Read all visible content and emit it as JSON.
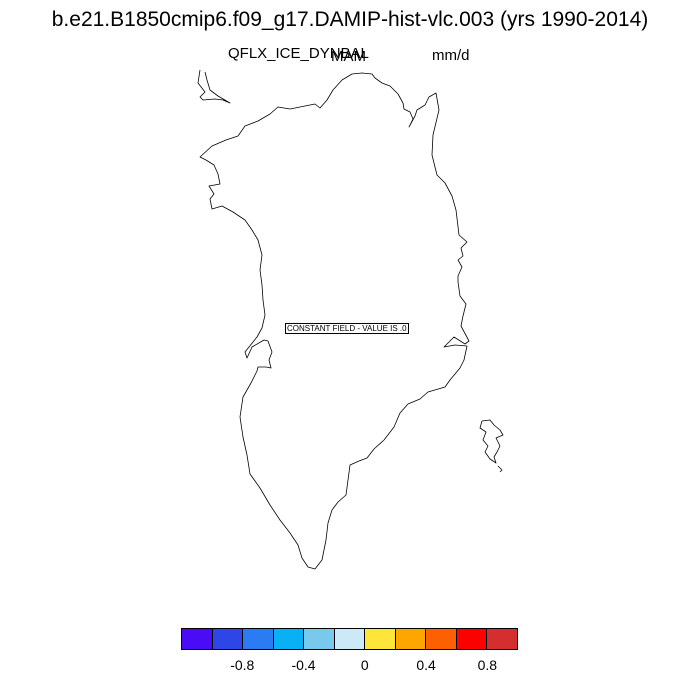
{
  "title": "b.e21.B1850cmip6.f09_g17.DAMIP-hist-vlc.003 (yrs 1990-2014)",
  "variable": "QFLX_ICE_DYNBAL",
  "season": "MAM",
  "units": "mm/d",
  "map_message": "CONSTANT FIELD - VALUE IS .0",
  "colorbar": {
    "colors": [
      "#4a0cf7",
      "#2e46e6",
      "#2b7cf2",
      "#0ab0f5",
      "#79c9ef",
      "#cbe9f6",
      "#fde53a",
      "#fda600",
      "#fd6000",
      "#fd0000",
      "#d42e2e"
    ],
    "tick_labels": [
      "-0.8",
      "-0.4",
      "0",
      "0.4",
      "0.8"
    ]
  }
}
